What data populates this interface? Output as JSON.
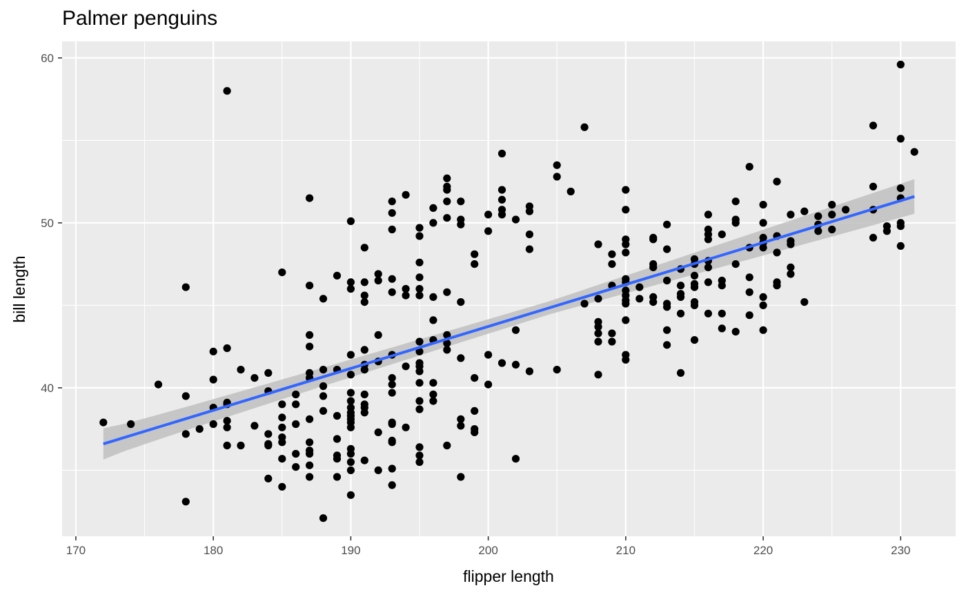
{
  "chart_data": {
    "type": "scatter",
    "title": "Palmer penguins",
    "xlabel": "flipper length",
    "ylabel": "bill length",
    "xlim": [
      169.0,
      234.0
    ],
    "ylim": [
      31.0,
      61.0
    ],
    "x_ticks": [
      170,
      180,
      190,
      200,
      210,
      220,
      230
    ],
    "x_tick_labels": [
      "170",
      "180",
      "190",
      "200",
      "210",
      "220",
      "230"
    ],
    "y_ticks": [
      40,
      50,
      60
    ],
    "y_tick_labels": [
      "40",
      "50",
      "60"
    ],
    "grid": true,
    "legend": "none",
    "colors": {
      "panel": "#ebebeb",
      "grid": "#ffffff",
      "points": "#000000",
      "fit_line": "#3366ff",
      "band": "#bfbfbf"
    },
    "fit": {
      "method": "linear",
      "x_range": [
        172,
        231
      ],
      "y_start": 36.6,
      "y_end": 51.6,
      "se_start": 0.95,
      "se_mid": 0.4,
      "se_end": 1.05
    },
    "points": [
      [
        181,
        58.0
      ],
      [
        230,
        59.6
      ],
      [
        228,
        55.9
      ],
      [
        230,
        55.1
      ],
      [
        231,
        54.3
      ],
      [
        207,
        55.8
      ],
      [
        201,
        54.2
      ],
      [
        205,
        53.5
      ],
      [
        205,
        52.8
      ],
      [
        206,
        51.9
      ],
      [
        219,
        53.4
      ],
      [
        221,
        52.5
      ],
      [
        228,
        52.2
      ],
      [
        230,
        52.1
      ],
      [
        197,
        52.7
      ],
      [
        197,
        52.2
      ],
      [
        197,
        52.0
      ],
      [
        201,
        52.0
      ],
      [
        210,
        52.0
      ],
      [
        187,
        51.5
      ],
      [
        194,
        51.7
      ],
      [
        193,
        51.3
      ],
      [
        196,
        50.9
      ],
      [
        197,
        51.3
      ],
      [
        198,
        51.3
      ],
      [
        201,
        51.4
      ],
      [
        203,
        51.0
      ],
      [
        210,
        50.8
      ],
      [
        218,
        51.3
      ],
      [
        220,
        51.1
      ],
      [
        225,
        51.1
      ],
      [
        226,
        50.8
      ],
      [
        228,
        50.8
      ],
      [
        230,
        51.5
      ],
      [
        193,
        50.6
      ],
      [
        201,
        50.8
      ],
      [
        201,
        50.5
      ],
      [
        203,
        50.7
      ],
      [
        200,
        50.5
      ],
      [
        197,
        50.3
      ],
      [
        198,
        50.2
      ],
      [
        202,
        50.2
      ],
      [
        216,
        50.5
      ],
      [
        218,
        50.2
      ],
      [
        220,
        50.0
      ],
      [
        222,
        50.5
      ],
      [
        223,
        50.7
      ],
      [
        224,
        50.4
      ],
      [
        225,
        50.5
      ],
      [
        190,
        50.1
      ],
      [
        196,
        50.0
      ],
      [
        198,
        49.9
      ],
      [
        213,
        49.9
      ],
      [
        218,
        50.0
      ],
      [
        224,
        49.9
      ],
      [
        229,
        49.8
      ],
      [
        230,
        50.0
      ],
      [
        230,
        49.8
      ],
      [
        193,
        49.6
      ],
      [
        195,
        49.7
      ],
      [
        195,
        49.2
      ],
      [
        200,
        49.5
      ],
      [
        203,
        49.3
      ],
      [
        212,
        49.1
      ],
      [
        212,
        49.0
      ],
      [
        216,
        49.6
      ],
      [
        216,
        49.3
      ],
      [
        216,
        49.0
      ],
      [
        217,
        49.3
      ],
      [
        221,
        49.2
      ],
      [
        224,
        49.5
      ],
      [
        225,
        49.6
      ],
      [
        228,
        49.1
      ],
      [
        229,
        49.5
      ],
      [
        210,
        49.0
      ],
      [
        210,
        48.7
      ],
      [
        208,
        48.7
      ],
      [
        220,
        49.1
      ],
      [
        220,
        48.8
      ],
      [
        222,
        48.9
      ],
      [
        230,
        48.6
      ],
      [
        191,
        48.5
      ],
      [
        203,
        48.4
      ],
      [
        210,
        48.2
      ],
      [
        213,
        48.4
      ],
      [
        219,
        48.5
      ],
      [
        220,
        48.5
      ],
      [
        221,
        48.2
      ],
      [
        222,
        48.7
      ],
      [
        199,
        48.1
      ],
      [
        209,
        48.1
      ],
      [
        195,
        47.6
      ],
      [
        199,
        47.5
      ],
      [
        209,
        47.5
      ],
      [
        212,
        47.5
      ],
      [
        212,
        47.3
      ],
      [
        214,
        47.2
      ],
      [
        215,
        47.8
      ],
      [
        215,
        47.5
      ],
      [
        216,
        47.7
      ],
      [
        216,
        47.3
      ],
      [
        218,
        47.5
      ],
      [
        222,
        47.3
      ],
      [
        185,
        47.0
      ],
      [
        189,
        46.8
      ],
      [
        192,
        46.9
      ],
      [
        192,
        46.5
      ],
      [
        195,
        46.7
      ],
      [
        193,
        46.6
      ],
      [
        190,
        46.4
      ],
      [
        191,
        46.4
      ],
      [
        187,
        46.2
      ],
      [
        210,
        46.6
      ],
      [
        210,
        46.4
      ],
      [
        209,
        46.2
      ],
      [
        211,
        46.1
      ],
      [
        213,
        46.5
      ],
      [
        214,
        46.2
      ],
      [
        215,
        46.8
      ],
      [
        215,
        46.3
      ],
      [
        215,
        46.1
      ],
      [
        216,
        46.4
      ],
      [
        217,
        46.5
      ],
      [
        217,
        46.2
      ],
      [
        219,
        46.7
      ],
      [
        221,
        46.4
      ],
      [
        221,
        46.2
      ],
      [
        222,
        46.9
      ],
      [
        178,
        46.1
      ],
      [
        190,
        46.0
      ],
      [
        194,
        46.0
      ],
      [
        195,
        46.0
      ],
      [
        197,
        45.8
      ],
      [
        194,
        45.6
      ],
      [
        196,
        45.5
      ],
      [
        191,
        45.6
      ],
      [
        191,
        45.2
      ],
      [
        193,
        45.8
      ],
      [
        195,
        45.6
      ],
      [
        198,
        45.2
      ],
      [
        188,
        45.4
      ],
      [
        210,
        45.9
      ],
      [
        210,
        45.6
      ],
      [
        210,
        45.3
      ],
      [
        210,
        45.1
      ],
      [
        211,
        45.4
      ],
      [
        212,
        45.5
      ],
      [
        212,
        45.2
      ],
      [
        213,
        45.1
      ],
      [
        214,
        45.7
      ],
      [
        214,
        45.5
      ],
      [
        215,
        45.2
      ],
      [
        215,
        45.0
      ],
      [
        219,
        45.8
      ],
      [
        220,
        45.5
      ],
      [
        220,
        45.0
      ],
      [
        223,
        45.2
      ],
      [
        207,
        45.1
      ],
      [
        208,
        45.4
      ],
      [
        213,
        44.9
      ],
      [
        214,
        44.5
      ],
      [
        216,
        44.5
      ],
      [
        217,
        44.5
      ],
      [
        219,
        44.4
      ],
      [
        196,
        44.1
      ],
      [
        210,
        44.1
      ],
      [
        208,
        44.0
      ],
      [
        208,
        43.7
      ],
      [
        208,
        43.3
      ],
      [
        209,
        43.3
      ],
      [
        208,
        42.8
      ],
      [
        209,
        42.8
      ],
      [
        213,
        43.5
      ],
      [
        213,
        42.6
      ],
      [
        215,
        42.9
      ],
      [
        217,
        43.6
      ],
      [
        218,
        43.4
      ],
      [
        220,
        43.5
      ],
      [
        187,
        43.2
      ],
      [
        187,
        42.5
      ],
      [
        192,
        43.2
      ],
      [
        195,
        42.8
      ],
      [
        195,
        42.2
      ],
      [
        196,
        42.9
      ],
      [
        197,
        43.2
      ],
      [
        197,
        42.7
      ],
      [
        197,
        42.3
      ],
      [
        202,
        43.5
      ],
      [
        180,
        42.2
      ],
      [
        181,
        42.4
      ],
      [
        191,
        42.3
      ],
      [
        190,
        42.0
      ],
      [
        193,
        42.0
      ],
      [
        200,
        42.0
      ],
      [
        201,
        41.5
      ],
      [
        202,
        41.4
      ],
      [
        205,
        41.1
      ],
      [
        210,
        42.0
      ],
      [
        210,
        41.7
      ],
      [
        198,
        41.8
      ],
      [
        192,
        41.6
      ],
      [
        195,
        41.5
      ],
      [
        195,
        41.3
      ],
      [
        195,
        41.0
      ],
      [
        194,
        41.3
      ],
      [
        191,
        41.4
      ],
      [
        191,
        41.1
      ],
      [
        189,
        41.1
      ],
      [
        190,
        40.8
      ],
      [
        188,
        41.1
      ],
      [
        187,
        40.9
      ],
      [
        187,
        40.6
      ],
      [
        182,
        41.1
      ],
      [
        184,
        40.9
      ],
      [
        183,
        40.6
      ],
      [
        203,
        41.0
      ],
      [
        214,
        40.9
      ],
      [
        208,
        40.8
      ],
      [
        180,
        40.5
      ],
      [
        193,
        40.6
      ],
      [
        193,
        40.2
      ],
      [
        195,
        40.3
      ],
      [
        196,
        40.3
      ],
      [
        199,
        40.6
      ],
      [
        200,
        40.2
      ],
      [
        176,
        40.2
      ],
      [
        188,
        40.1
      ],
      [
        186,
        39.6
      ],
      [
        188,
        39.5
      ],
      [
        184,
        39.8
      ],
      [
        190,
        39.7
      ],
      [
        190,
        39.2
      ],
      [
        191,
        39.6
      ],
      [
        191,
        39.0
      ],
      [
        193,
        39.7
      ],
      [
        195,
        39.2
      ],
      [
        196,
        39.6
      ],
      [
        196,
        39.2
      ],
      [
        178,
        39.5
      ],
      [
        181,
        39.1
      ],
      [
        181,
        39.0
      ],
      [
        185,
        39.0
      ],
      [
        186,
        39.0
      ],
      [
        180,
        38.8
      ],
      [
        190,
        38.8
      ],
      [
        190,
        38.5
      ],
      [
        190,
        38.3
      ],
      [
        190,
        38.1
      ],
      [
        191,
        38.8
      ],
      [
        191,
        38.5
      ],
      [
        189,
        38.3
      ],
      [
        188,
        38.6
      ],
      [
        195,
        38.7
      ],
      [
        199,
        38.6
      ],
      [
        198,
        38.1
      ],
      [
        198,
        37.7
      ],
      [
        193,
        37.9
      ],
      [
        193,
        37.8
      ],
      [
        194,
        37.6
      ],
      [
        190,
        37.9
      ],
      [
        190,
        37.6
      ],
      [
        186,
        37.8
      ],
      [
        187,
        38.1
      ],
      [
        183,
        37.7
      ],
      [
        185,
        38.2
      ],
      [
        185,
        37.6
      ],
      [
        180,
        37.8
      ],
      [
        179,
        37.5
      ],
      [
        178,
        37.2
      ],
      [
        181,
        38.0
      ],
      [
        181,
        37.6
      ],
      [
        172,
        37.9
      ],
      [
        174,
        37.8
      ],
      [
        184,
        37.2
      ],
      [
        185,
        37.0
      ],
      [
        185,
        36.7
      ],
      [
        184,
        36.5
      ],
      [
        184,
        36.6
      ],
      [
        187,
        36.7
      ],
      [
        187,
        36.2
      ],
      [
        187,
        36.0
      ],
      [
        186,
        36.0
      ],
      [
        189,
        36.9
      ],
      [
        189,
        35.9
      ],
      [
        189,
        35.7
      ],
      [
        190,
        36.3
      ],
      [
        190,
        36.0
      ],
      [
        190,
        35.5
      ],
      [
        190,
        35.0
      ],
      [
        191,
        35.6
      ],
      [
        192,
        37.3
      ],
      [
        193,
        36.7
      ],
      [
        193,
        36.8
      ],
      [
        195,
        36.4
      ],
      [
        195,
        35.9
      ],
      [
        195,
        35.5
      ],
      [
        197,
        36.5
      ],
      [
        199,
        37.5
      ],
      [
        199,
        37.3
      ],
      [
        202,
        35.7
      ],
      [
        181,
        36.5
      ],
      [
        182,
        36.5
      ],
      [
        185,
        35.7
      ],
      [
        186,
        35.2
      ],
      [
        187,
        35.3
      ],
      [
        184,
        34.5
      ],
      [
        185,
        34.0
      ],
      [
        187,
        34.6
      ],
      [
        189,
        34.6
      ],
      [
        192,
        35.0
      ],
      [
        193,
        35.1
      ],
      [
        193,
        34.1
      ],
      [
        198,
        34.6
      ],
      [
        178,
        33.1
      ],
      [
        190,
        33.5
      ],
      [
        188,
        32.1
      ]
    ]
  }
}
